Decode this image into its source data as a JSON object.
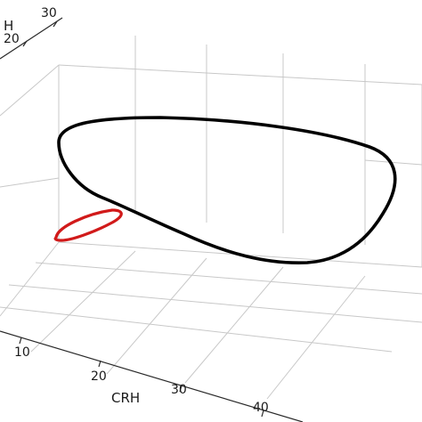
{
  "chart_data": {
    "type": "line",
    "projection": "3d",
    "grid": true,
    "axes": {
      "x": {
        "label": "CRH",
        "ticks": [
          10,
          20,
          30,
          40
        ]
      },
      "z": {
        "label": "H",
        "ticks": [
          20,
          30
        ]
      }
    },
    "series": [
      {
        "color": "#000000",
        "closed": true
      },
      {
        "color": "#d11a1a",
        "closed": true
      }
    ]
  }
}
